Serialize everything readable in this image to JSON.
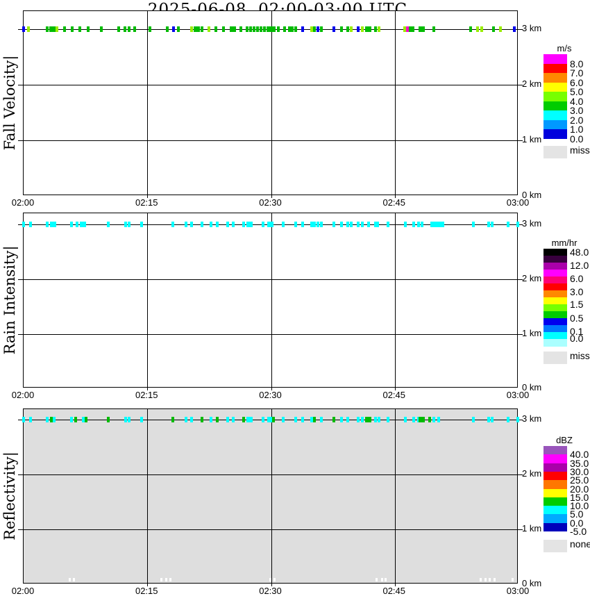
{
  "title": "2025-06-08  02:00-03:00 UTC",
  "colors": {
    "panel_bg": "#FFFFFF",
    "reflectivity_none_bg": "#DEDEDE",
    "grid": "#000000",
    "missing_gray": "#E4E4E4",
    "mark_palette": {
      "g": "#00BB00",
      "ch": "#99EE00",
      "b": "#0000EE",
      "m": "#FF00CC",
      "cy": "#00FFFF",
      "w": "#FFFFFF"
    }
  },
  "chart_data": [
    {
      "type": "scatter",
      "panel_id": "fall-velocity",
      "panel_name": "Fall Velocity",
      "ylabel": "Fall Velocity|",
      "unit": "m/s",
      "bg": "#FFFFFF",
      "x_ticks": [
        "02:00",
        "02:15",
        "02:30",
        "02:45",
        "03:00"
      ],
      "x_range_minutes": [
        0,
        60
      ],
      "height_labels": [
        "3 km",
        "2 km",
        "1 km",
        "0 km"
      ],
      "y_range_km": [
        0,
        3.3
      ],
      "data_height_km": 3.0,
      "point_format": [
        "minutes_after_0200",
        "color_key",
        "wide_cluster"
      ],
      "color_value_map": {
        "g": "3-4 m/s",
        "ch": "4-5 m/s",
        "b": "0-1 m/s",
        "m": ">8 m/s"
      },
      "points": [
        [
          0,
          "b"
        ],
        [
          0.6,
          "ch"
        ],
        [
          2.9,
          "g"
        ],
        [
          3.5,
          "g",
          1
        ],
        [
          4.0,
          "ch"
        ],
        [
          5.0,
          "g"
        ],
        [
          5.9,
          "g"
        ],
        [
          6.8,
          "g"
        ],
        [
          7.8,
          "g"
        ],
        [
          9.4,
          "g"
        ],
        [
          11.5,
          "g"
        ],
        [
          12.3,
          "g"
        ],
        [
          12.8,
          "g"
        ],
        [
          13.5,
          "g"
        ],
        [
          15.3,
          "g"
        ],
        [
          17.4,
          "g"
        ],
        [
          18.2,
          "b"
        ],
        [
          18.8,
          "g"
        ],
        [
          20.4,
          "ch"
        ],
        [
          21.0,
          "g",
          1
        ],
        [
          21.6,
          "g"
        ],
        [
          22.5,
          "ch"
        ],
        [
          23.3,
          "g"
        ],
        [
          24.2,
          "g"
        ],
        [
          25.4,
          "g",
          1
        ],
        [
          26.3,
          "g"
        ],
        [
          27.1,
          "g"
        ],
        [
          27.5,
          "g"
        ],
        [
          27.9,
          "g"
        ],
        [
          28.4,
          "g"
        ],
        [
          28.8,
          "g"
        ],
        [
          29.2,
          "g"
        ],
        [
          29.6,
          "g"
        ],
        [
          30.2,
          "g",
          1
        ],
        [
          30.9,
          "g"
        ],
        [
          31.6,
          "g"
        ],
        [
          32.2,
          "g"
        ],
        [
          32.6,
          "g"
        ],
        [
          33.0,
          "g"
        ],
        [
          33.8,
          "b"
        ],
        [
          34.9,
          "ch"
        ],
        [
          35.3,
          "g"
        ],
        [
          35.7,
          "b"
        ],
        [
          36.1,
          "g"
        ],
        [
          37.6,
          "b"
        ],
        [
          38.5,
          "g"
        ],
        [
          39.3,
          "g"
        ],
        [
          39.7,
          "ch"
        ],
        [
          40.6,
          "b"
        ],
        [
          41.1,
          "ch"
        ],
        [
          41.8,
          "g",
          1
        ],
        [
          42.7,
          "g"
        ],
        [
          43.1,
          "ch"
        ],
        [
          46.2,
          "ch"
        ],
        [
          46.5,
          "m"
        ],
        [
          46.9,
          "g"
        ],
        [
          47.2,
          "g"
        ],
        [
          48.3,
          "g",
          1
        ],
        [
          49.7,
          "g"
        ],
        [
          54.2,
          "g"
        ],
        [
          55.0,
          "ch"
        ],
        [
          55.5,
          "ch"
        ],
        [
          57.0,
          "g"
        ],
        [
          57.8,
          "ch"
        ],
        [
          59.5,
          "b"
        ]
      ],
      "legend": {
        "title": "m/s",
        "band_colors": [
          "#FF00FF",
          "#FF0000",
          "#FF8800",
          "#FFFF00",
          "#77FF00",
          "#00CC00",
          "#00FFFF",
          "#0099FF",
          "#0000DD"
        ],
        "band_labels": [
          "8.0",
          "7.0",
          "6.0",
          "5.0",
          "4.0",
          "3.0",
          "2.0",
          "1.0",
          "0.0"
        ],
        "missing_label": "miss"
      }
    },
    {
      "type": "scatter",
      "panel_id": "rain-intensity",
      "panel_name": "Rain Intensity",
      "ylabel": "Rain Intensity|",
      "unit": "mm/hr",
      "bg": "#FFFFFF",
      "x_ticks": [
        "02:00",
        "02:15",
        "02:30",
        "02:45",
        "03:00"
      ],
      "x_range_minutes": [
        0,
        60
      ],
      "height_labels": [
        "3 km",
        "2 km",
        "1 km",
        "0 km"
      ],
      "y_range_km": [
        0,
        3.3
      ],
      "data_height_km": 3.0,
      "point_format": [
        "minutes_after_0200",
        "color_key",
        "wide_cluster"
      ],
      "color_value_map": {
        "cy": "0.1-0.5 mm/hr"
      },
      "points": [
        [
          0,
          "cy"
        ],
        [
          0.8,
          "cy"
        ],
        [
          2.9,
          "cy"
        ],
        [
          3.6,
          "cy",
          1
        ],
        [
          5.8,
          "cy"
        ],
        [
          6.5,
          "cy"
        ],
        [
          7.2,
          "cy",
          1
        ],
        [
          10.3,
          "cy"
        ],
        [
          12.4,
          "cy"
        ],
        [
          12.8,
          "cy"
        ],
        [
          14.3,
          "cy"
        ],
        [
          18.1,
          "cy"
        ],
        [
          19.7,
          "cy"
        ],
        [
          20.4,
          "cy"
        ],
        [
          21.6,
          "cy"
        ],
        [
          22.7,
          "cy"
        ],
        [
          23.5,
          "cy"
        ],
        [
          24.7,
          "cy"
        ],
        [
          25.4,
          "cy"
        ],
        [
          26.7,
          "cy"
        ],
        [
          27.4,
          "cy",
          1
        ],
        [
          29.0,
          "cy"
        ],
        [
          29.9,
          "cy",
          1
        ],
        [
          31.5,
          "cy"
        ],
        [
          33.0,
          "cy"
        ],
        [
          33.8,
          "cy"
        ],
        [
          34.9,
          "cy"
        ],
        [
          35.3,
          "cy"
        ],
        [
          35.7,
          "cy"
        ],
        [
          36.1,
          "cy"
        ],
        [
          37.6,
          "cy"
        ],
        [
          38.5,
          "cy"
        ],
        [
          39.3,
          "cy"
        ],
        [
          39.7,
          "cy"
        ],
        [
          40.6,
          "cy"
        ],
        [
          41.1,
          "cy"
        ],
        [
          41.8,
          "cy"
        ],
        [
          42.7,
          "cy"
        ],
        [
          42.9,
          "cy"
        ],
        [
          44.2,
          "cy"
        ],
        [
          46.3,
          "cy"
        ],
        [
          47.3,
          "cy"
        ],
        [
          47.9,
          "cy"
        ],
        [
          48.3,
          "cy"
        ],
        [
          49.7,
          "cy",
          1
        ],
        [
          50.3,
          "cy",
          1
        ],
        [
          50.8,
          "cy"
        ],
        [
          54.5,
          "cy"
        ],
        [
          56.4,
          "cy"
        ],
        [
          56.8,
          "cy"
        ],
        [
          58.7,
          "cy"
        ],
        [
          59.9,
          "cy"
        ]
      ],
      "legend": {
        "title": "mm/hr",
        "band_colors": [
          "#000000",
          "#38003E",
          "#AA00AA",
          "#FF00FF",
          "#FF0077",
          "#FF0000",
          "#FF8800",
          "#FFFF00",
          "#77FF00",
          "#00CC00",
          "#0000EE",
          "#0077FF",
          "#00FFFF",
          "#AAFFFF"
        ],
        "band_labels": [
          "48.0",
          "12.0",
          "6.0",
          "3.0",
          "1.5",
          "0.5",
          "0.1",
          "0.0"
        ],
        "missing_label": "miss"
      }
    },
    {
      "type": "scatter",
      "panel_id": "reflectivity",
      "panel_name": "Reflectivity",
      "ylabel": "Reflectivity|",
      "unit": "dBZ",
      "bg": "#DEDEDE",
      "x_ticks": [
        "02:00",
        "02:15",
        "02:30",
        "02:45",
        "03:00"
      ],
      "x_range_minutes": [
        0,
        60
      ],
      "height_labels": [
        "3 km",
        "2 km",
        "1 km",
        "0 km"
      ],
      "y_range_km": [
        0,
        3.3
      ],
      "data_height_km": 3.0,
      "point_format": [
        "minutes_after_0200",
        "color_key",
        "wide_cluster"
      ],
      "color_value_map": {
        "cy": "5-10 dBZ",
        "g": "10-15 dBZ"
      },
      "points": [
        [
          0,
          "cy"
        ],
        [
          0.8,
          "cy"
        ],
        [
          2.9,
          "cy"
        ],
        [
          3.4,
          "g"
        ],
        [
          3.7,
          "cy"
        ],
        [
          5.8,
          "cy"
        ],
        [
          6.3,
          "g"
        ],
        [
          7.2,
          "cy"
        ],
        [
          7.6,
          "g"
        ],
        [
          10.3,
          "g"
        ],
        [
          12.4,
          "cy"
        ],
        [
          12.8,
          "cy"
        ],
        [
          14.3,
          "cy"
        ],
        [
          18.1,
          "g"
        ],
        [
          19.7,
          "cy"
        ],
        [
          20.4,
          "cy"
        ],
        [
          21.6,
          "g"
        ],
        [
          22.7,
          "cy"
        ],
        [
          23.5,
          "g"
        ],
        [
          24.7,
          "cy"
        ],
        [
          25.4,
          "cy"
        ],
        [
          26.7,
          "g"
        ],
        [
          27.4,
          "cy",
          1
        ],
        [
          29.0,
          "cy"
        ],
        [
          29.9,
          "cy",
          1
        ],
        [
          30.3,
          "g"
        ],
        [
          31.5,
          "cy"
        ],
        [
          33.0,
          "cy"
        ],
        [
          33.8,
          "cy"
        ],
        [
          34.9,
          "cy"
        ],
        [
          35.3,
          "g"
        ],
        [
          36.1,
          "cy"
        ],
        [
          37.6,
          "g"
        ],
        [
          38.5,
          "cy"
        ],
        [
          39.3,
          "cy"
        ],
        [
          40.6,
          "cy"
        ],
        [
          41.1,
          "cy"
        ],
        [
          41.8,
          "g",
          1
        ],
        [
          42.7,
          "cy"
        ],
        [
          43.1,
          "cy"
        ],
        [
          44.2,
          "cy"
        ],
        [
          46.3,
          "cy"
        ],
        [
          47.3,
          "cy"
        ],
        [
          47.9,
          "cy"
        ],
        [
          48.3,
          "g",
          1
        ],
        [
          49.2,
          "g"
        ],
        [
          49.7,
          "cy"
        ],
        [
          50.3,
          "cy"
        ],
        [
          54.5,
          "cy"
        ],
        [
          56.4,
          "cy"
        ],
        [
          56.8,
          "cy"
        ],
        [
          58.7,
          "cy"
        ],
        [
          59.9,
          "cy"
        ]
      ],
      "ghost_points": [
        5.5,
        6.0,
        16.6,
        17.2,
        17.7,
        29.8,
        30.3,
        42.7,
        43.3,
        43.8,
        55.3,
        55.9,
        56.4,
        57.0,
        59.2
      ],
      "legend": {
        "title": "dBZ",
        "band_colors": [
          "#9955BB",
          "#FF00FF",
          "#AA00AA",
          "#FF0000",
          "#FF7700",
          "#FFFF00",
          "#00CC00",
          "#00FFFF",
          "#00AAFF",
          "#0000BB"
        ],
        "band_labels": [
          "40.0",
          "35.0",
          "30.0",
          "25.0",
          "20.0",
          "15.0",
          "10.0",
          "5.0",
          "0.0",
          "-5.0"
        ],
        "missing_label": "none"
      }
    }
  ]
}
